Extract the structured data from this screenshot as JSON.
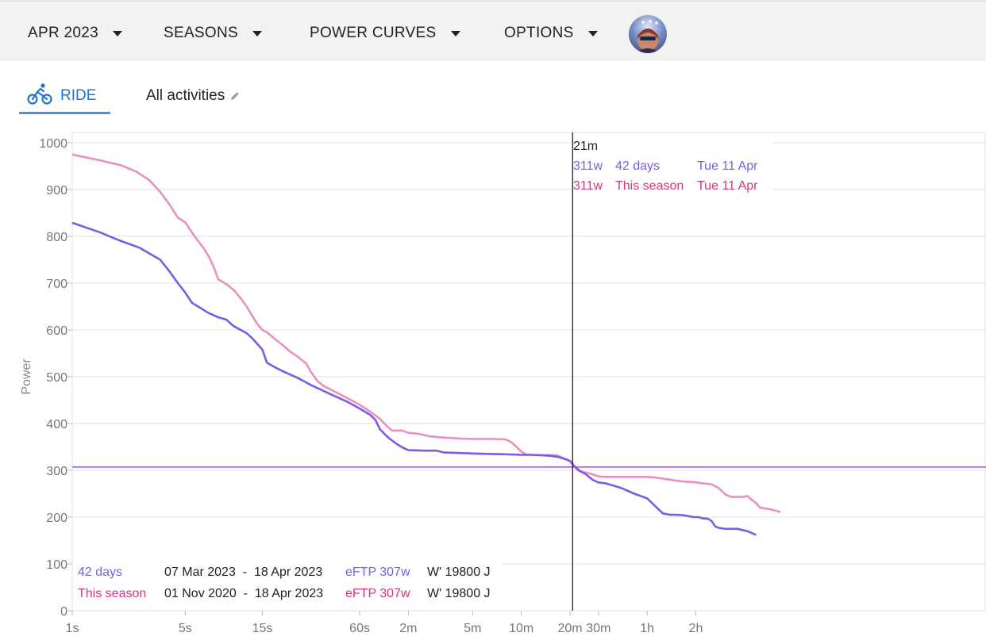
{
  "nav": {
    "month": "APR 2023",
    "seasons": "SEASONS",
    "power_curves": "POWER CURVES",
    "options": "OPTIONS"
  },
  "tabs": {
    "ride": "RIDE",
    "filter": "All activities"
  },
  "tooltip": {
    "time": "21m",
    "rows": [
      {
        "power": "311w",
        "name": "42 days",
        "date": "Tue 11 Apr"
      },
      {
        "power": "311w",
        "name": "This season",
        "date": "Tue 11 Apr"
      }
    ]
  },
  "legend": [
    {
      "name": "42 days",
      "range": "07 Mar 2023  -  18 Apr 2023",
      "eftp": "eFTP 307w",
      "wprime": "W' 19800 J"
    },
    {
      "name": "This season",
      "range": "01 Nov 2020  -  18 Apr 2023",
      "eftp": "eFTP 307w",
      "wprime": "W' 19800 J"
    }
  ],
  "chart_data": {
    "type": "line",
    "ylabel": "Power",
    "ylim": [
      0,
      1000
    ],
    "yticks": [
      0,
      100,
      200,
      300,
      400,
      500,
      600,
      700,
      800,
      900,
      1000
    ],
    "x_scale": "log",
    "xlim_seconds": [
      1,
      9000
    ],
    "xticks": [
      {
        "s": 1,
        "label": "1s"
      },
      {
        "s": 5,
        "label": "5s"
      },
      {
        "s": 15,
        "label": "15s"
      },
      {
        "s": 60,
        "label": "60s"
      },
      {
        "s": 120,
        "label": "2m"
      },
      {
        "s": 300,
        "label": "5m"
      },
      {
        "s": 600,
        "label": "10m"
      },
      {
        "s": 1200,
        "label": "20m"
      },
      {
        "s": 1800,
        "label": "30m"
      },
      {
        "s": 3600,
        "label": "1h"
      },
      {
        "s": 7200,
        "label": "2h"
      }
    ],
    "crosshair_seconds": 1260,
    "eftp_line": 307,
    "series": [
      {
        "name": "42 days",
        "color": "#7a5ce6",
        "points": [
          [
            1,
            829
          ],
          [
            1.5,
            808
          ],
          [
            2,
            790
          ],
          [
            2.6,
            776
          ],
          [
            3.5,
            750
          ],
          [
            4,
            725
          ],
          [
            4.5,
            700
          ],
          [
            5,
            680
          ],
          [
            5.5,
            658
          ],
          [
            6,
            650
          ],
          [
            7,
            636
          ],
          [
            8,
            627
          ],
          [
            9,
            622
          ],
          [
            9.5,
            614
          ],
          [
            10,
            608
          ],
          [
            12,
            593
          ],
          [
            13,
            582
          ],
          [
            15,
            558
          ],
          [
            16,
            530
          ],
          [
            18,
            520
          ],
          [
            20,
            512
          ],
          [
            25,
            497
          ],
          [
            30,
            482
          ],
          [
            40,
            462
          ],
          [
            50,
            447
          ],
          [
            60,
            432
          ],
          [
            70,
            418
          ],
          [
            75,
            408
          ],
          [
            80,
            388
          ],
          [
            90,
            370
          ],
          [
            100,
            358
          ],
          [
            110,
            349
          ],
          [
            120,
            343
          ],
          [
            150,
            342
          ],
          [
            180,
            342
          ],
          [
            200,
            338
          ],
          [
            250,
            337
          ],
          [
            300,
            336
          ],
          [
            400,
            335
          ],
          [
            500,
            334
          ],
          [
            600,
            333
          ],
          [
            700,
            333
          ],
          [
            900,
            331
          ],
          [
            1000,
            329
          ],
          [
            1100,
            325
          ],
          [
            1200,
            320
          ],
          [
            1260,
            311
          ],
          [
            1350,
            300
          ],
          [
            1500,
            292
          ],
          [
            1650,
            280
          ],
          [
            1800,
            274
          ],
          [
            2000,
            272
          ],
          [
            2500,
            262
          ],
          [
            3000,
            250
          ],
          [
            3600,
            240
          ],
          [
            4000,
            225
          ],
          [
            4500,
            208
          ],
          [
            5000,
            205
          ],
          [
            5500,
            205
          ],
          [
            6000,
            204
          ],
          [
            6500,
            202
          ],
          [
            7000,
            200
          ],
          [
            7500,
            200
          ],
          [
            8000,
            197
          ],
          [
            8500,
            197
          ],
          [
            9000,
            192
          ],
          [
            9500,
            180
          ],
          [
            10000,
            177
          ],
          [
            11000,
            175
          ],
          [
            13000,
            175
          ],
          [
            15000,
            170
          ],
          [
            17000,
            162
          ]
        ]
      },
      {
        "name": "This season",
        "color": "#ea8fbf",
        "points": [
          [
            1,
            975
          ],
          [
            1.5,
            962
          ],
          [
            2,
            952
          ],
          [
            2.5,
            938
          ],
          [
            3,
            920
          ],
          [
            3.5,
            895
          ],
          [
            4,
            868
          ],
          [
            4.5,
            840
          ],
          [
            5,
            830
          ],
          [
            5.5,
            808
          ],
          [
            6,
            790
          ],
          [
            6.5,
            775
          ],
          [
            7,
            757
          ],
          [
            7.5,
            735
          ],
          [
            8,
            708
          ],
          [
            9,
            698
          ],
          [
            10,
            685
          ],
          [
            11,
            668
          ],
          [
            12,
            650
          ],
          [
            13,
            630
          ],
          [
            14,
            612
          ],
          [
            15,
            600
          ],
          [
            16,
            595
          ],
          [
            18,
            580
          ],
          [
            20,
            568
          ],
          [
            22,
            555
          ],
          [
            25,
            542
          ],
          [
            28,
            528
          ],
          [
            30,
            510
          ],
          [
            33,
            490
          ],
          [
            36,
            480
          ],
          [
            40,
            472
          ],
          [
            50,
            455
          ],
          [
            60,
            440
          ],
          [
            70,
            425
          ],
          [
            80,
            410
          ],
          [
            88,
            395
          ],
          [
            95,
            385
          ],
          [
            100,
            385
          ],
          [
            110,
            385
          ],
          [
            120,
            380
          ],
          [
            140,
            378
          ],
          [
            160,
            373
          ],
          [
            200,
            370
          ],
          [
            250,
            368
          ],
          [
            300,
            367
          ],
          [
            400,
            367
          ],
          [
            480,
            366
          ],
          [
            520,
            360
          ],
          [
            560,
            350
          ],
          [
            600,
            340
          ],
          [
            640,
            334
          ],
          [
            700,
            333
          ],
          [
            1000,
            332
          ],
          [
            1200,
            320
          ],
          [
            1260,
            311
          ],
          [
            1400,
            298
          ],
          [
            1600,
            293
          ],
          [
            1800,
            287
          ],
          [
            2000,
            286
          ],
          [
            2500,
            286
          ],
          [
            3000,
            286
          ],
          [
            3500,
            286
          ],
          [
            4000,
            285
          ],
          [
            4500,
            282
          ],
          [
            5000,
            280
          ],
          [
            6000,
            276
          ],
          [
            7000,
            275
          ],
          [
            8000,
            272
          ],
          [
            9000,
            270
          ],
          [
            10000,
            262
          ],
          [
            11000,
            248
          ],
          [
            12000,
            243
          ],
          [
            13000,
            243
          ],
          [
            14000,
            243
          ],
          [
            15000,
            245
          ],
          [
            16000,
            237
          ],
          [
            17000,
            230
          ],
          [
            18000,
            220
          ],
          [
            20000,
            218
          ],
          [
            24000,
            211
          ]
        ]
      }
    ]
  }
}
